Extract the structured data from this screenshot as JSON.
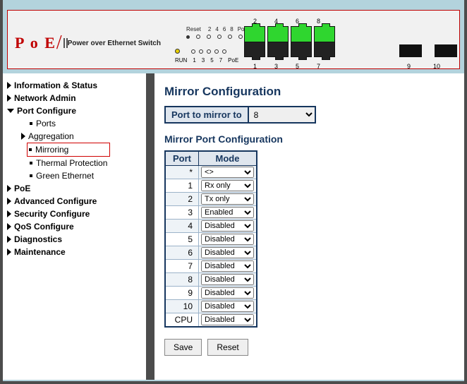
{
  "banner": {
    "logo_main": "P o E",
    "logo_text": "Power over Ethernet Switch",
    "reset_label": "Reset",
    "reset_top_nums": [
      "2",
      "4",
      "6",
      "8",
      "PoE"
    ],
    "run_label": "RUN",
    "led_nums": [
      "1",
      "3",
      "5",
      "7",
      "PoE"
    ],
    "top_port_labels": [
      "2",
      "4",
      "6",
      "8"
    ],
    "bot_port_labels": [
      "1",
      "3",
      "5",
      "7"
    ],
    "sfp_labels": [
      "9",
      "10"
    ]
  },
  "nav": {
    "info_status": "Information & Status",
    "network_admin": "Network Admin",
    "port_configure": "Port Configure",
    "ports": "Ports",
    "aggregation": "Aggregation",
    "mirroring": "Mirroring",
    "thermal": "Thermal Protection",
    "green": "Green Ethernet",
    "poe": "PoE",
    "adv": "Advanced Configure",
    "sec": "Security Configure",
    "qos": "QoS Configure",
    "diag": "Diagnostics",
    "maint": "Maintenance"
  },
  "content": {
    "title": "Mirror Configuration",
    "mirror_to_label": "Port to mirror to",
    "mirror_to_value": "8",
    "subtitle": "Mirror Port Configuration",
    "col_port": "Port",
    "col_mode": "Mode",
    "rows": [
      {
        "port": "*",
        "mode": "<>"
      },
      {
        "port": "1",
        "mode": "Rx only"
      },
      {
        "port": "2",
        "mode": "Tx only"
      },
      {
        "port": "3",
        "mode": "Enabled"
      },
      {
        "port": "4",
        "mode": "Disabled"
      },
      {
        "port": "5",
        "mode": "Disabled"
      },
      {
        "port": "6",
        "mode": "Disabled"
      },
      {
        "port": "7",
        "mode": "Disabled"
      },
      {
        "port": "8",
        "mode": "Disabled"
      },
      {
        "port": "9",
        "mode": "Disabled"
      },
      {
        "port": "10",
        "mode": "Disabled"
      },
      {
        "port": "CPU",
        "mode": "Disabled"
      }
    ],
    "save": "Save",
    "reset": "Reset"
  }
}
